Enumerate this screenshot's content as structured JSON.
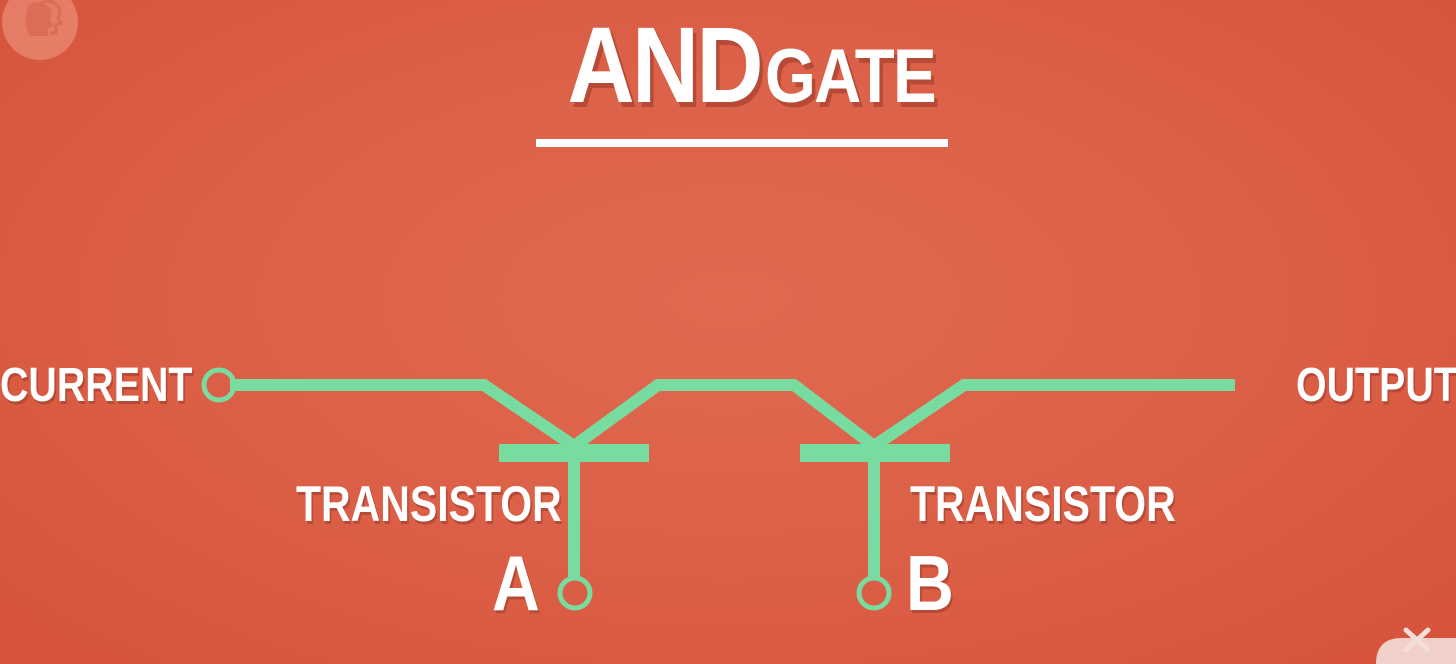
{
  "title": {
    "main": "AND",
    "sub": "GATE"
  },
  "labels": {
    "current": "CURRENT",
    "output": "OUTPUT",
    "transistor_a": "TRANSISTOR",
    "transistor_a_letter": "A",
    "transistor_b": "TRANSISTOR",
    "transistor_b_letter": "B"
  },
  "icons": {
    "logo": "pbs-logo-icon",
    "corner": "x-close-icon"
  },
  "colors": {
    "background": "#dc6148",
    "wire": "#78dca0",
    "text": "#ffffff",
    "text_shadow": "#b64a36"
  }
}
